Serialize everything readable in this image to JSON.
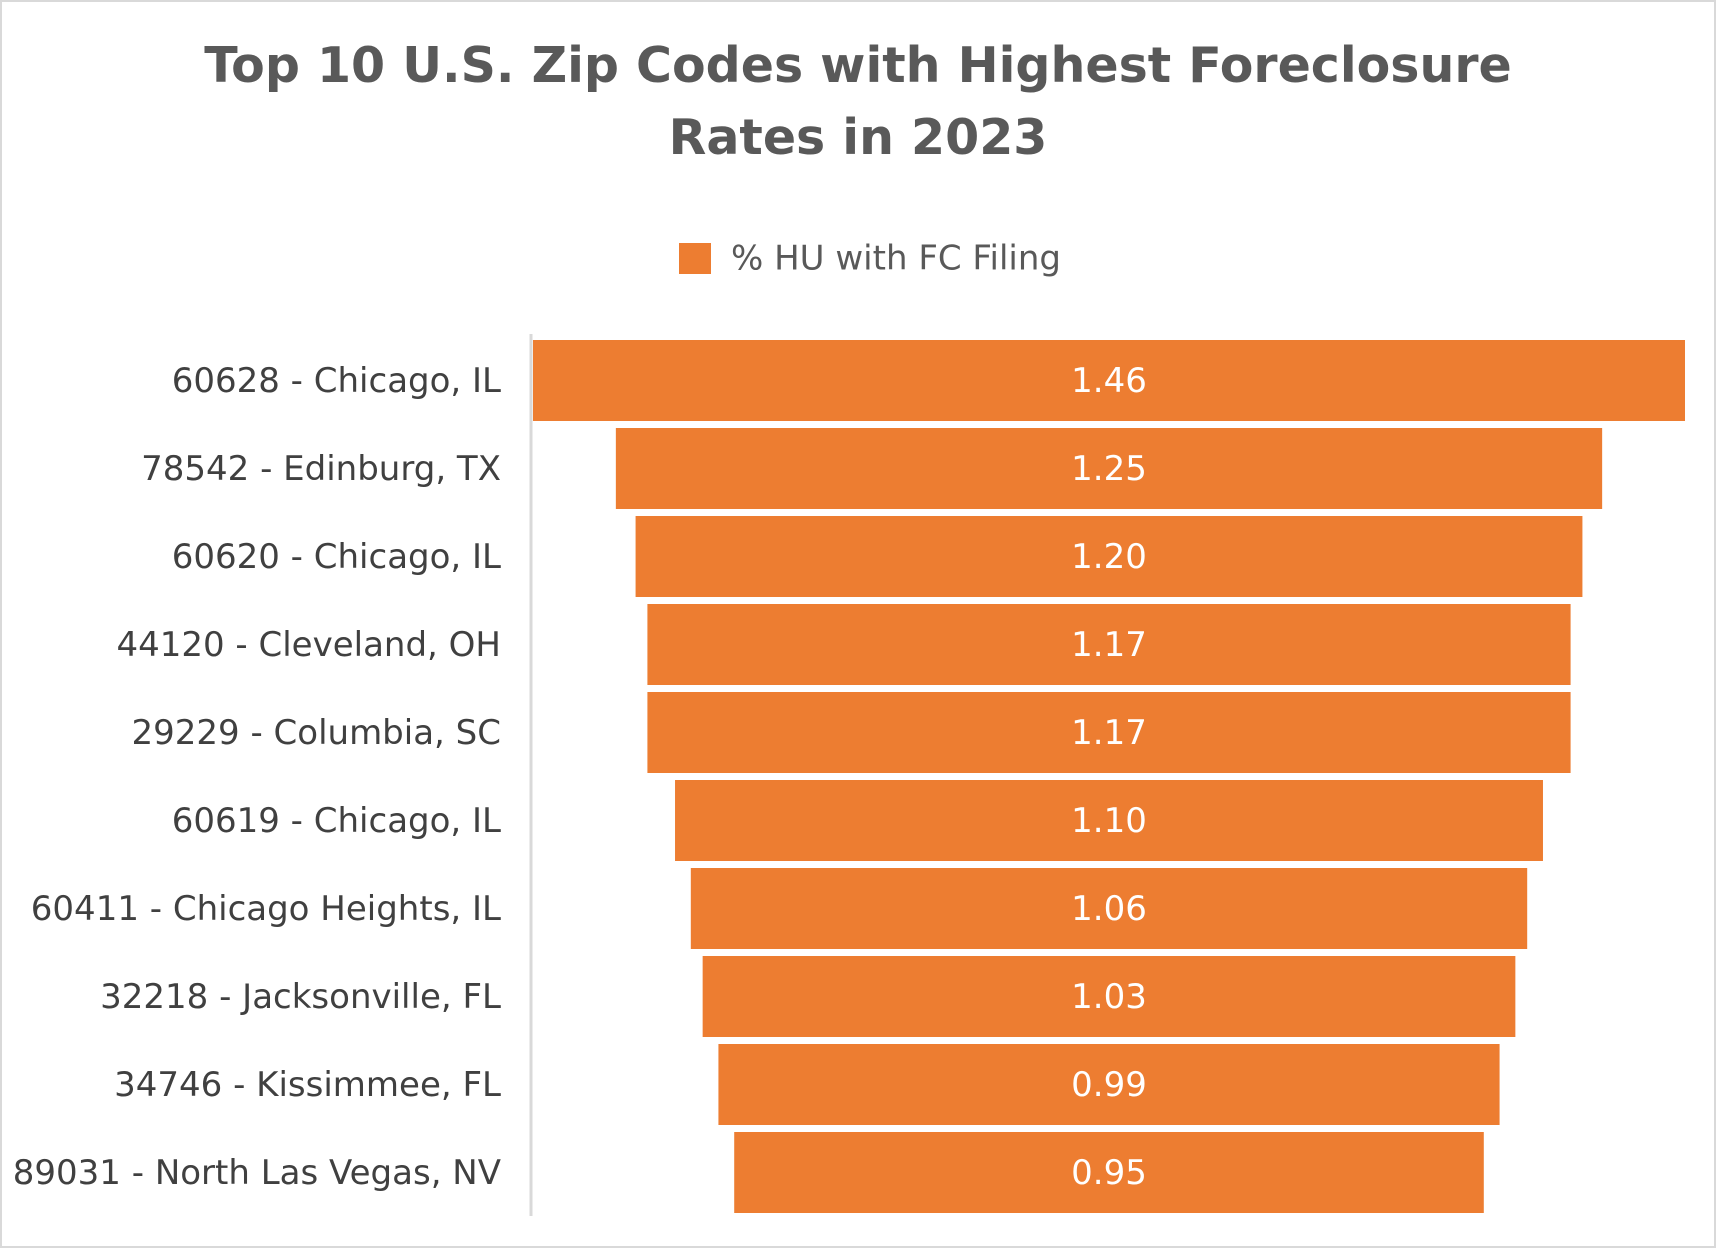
{
  "chart_data": {
    "type": "funnel",
    "title": "Top 10 U.S. Zip Codes with Highest Foreclosure Rates in 2023",
    "categories": [
      "60628 - Chicago, IL",
      "78542 - Edinburg, TX",
      "60620 - Chicago, IL",
      "44120 - Cleveland, OH",
      "29229 - Columbia, SC",
      "60619 - Chicago, IL",
      "60411 - Chicago Heights, IL",
      "32218 - Jacksonville, FL",
      "34746 - Kissimmee, FL",
      "89031 - North Las Vegas, NV"
    ],
    "series": [
      {
        "name": "% HU with FC Filing",
        "color": "#ed7d31",
        "values": [
          1.46,
          1.25,
          1.2,
          1.17,
          1.17,
          1.1,
          1.06,
          1.03,
          0.99,
          0.95
        ],
        "value_labels": [
          "1.46",
          "1.25",
          "1.20",
          "1.17",
          "1.17",
          "1.10",
          "1.06",
          "1.03",
          "0.99",
          "0.95"
        ]
      }
    ],
    "legend": "top"
  }
}
